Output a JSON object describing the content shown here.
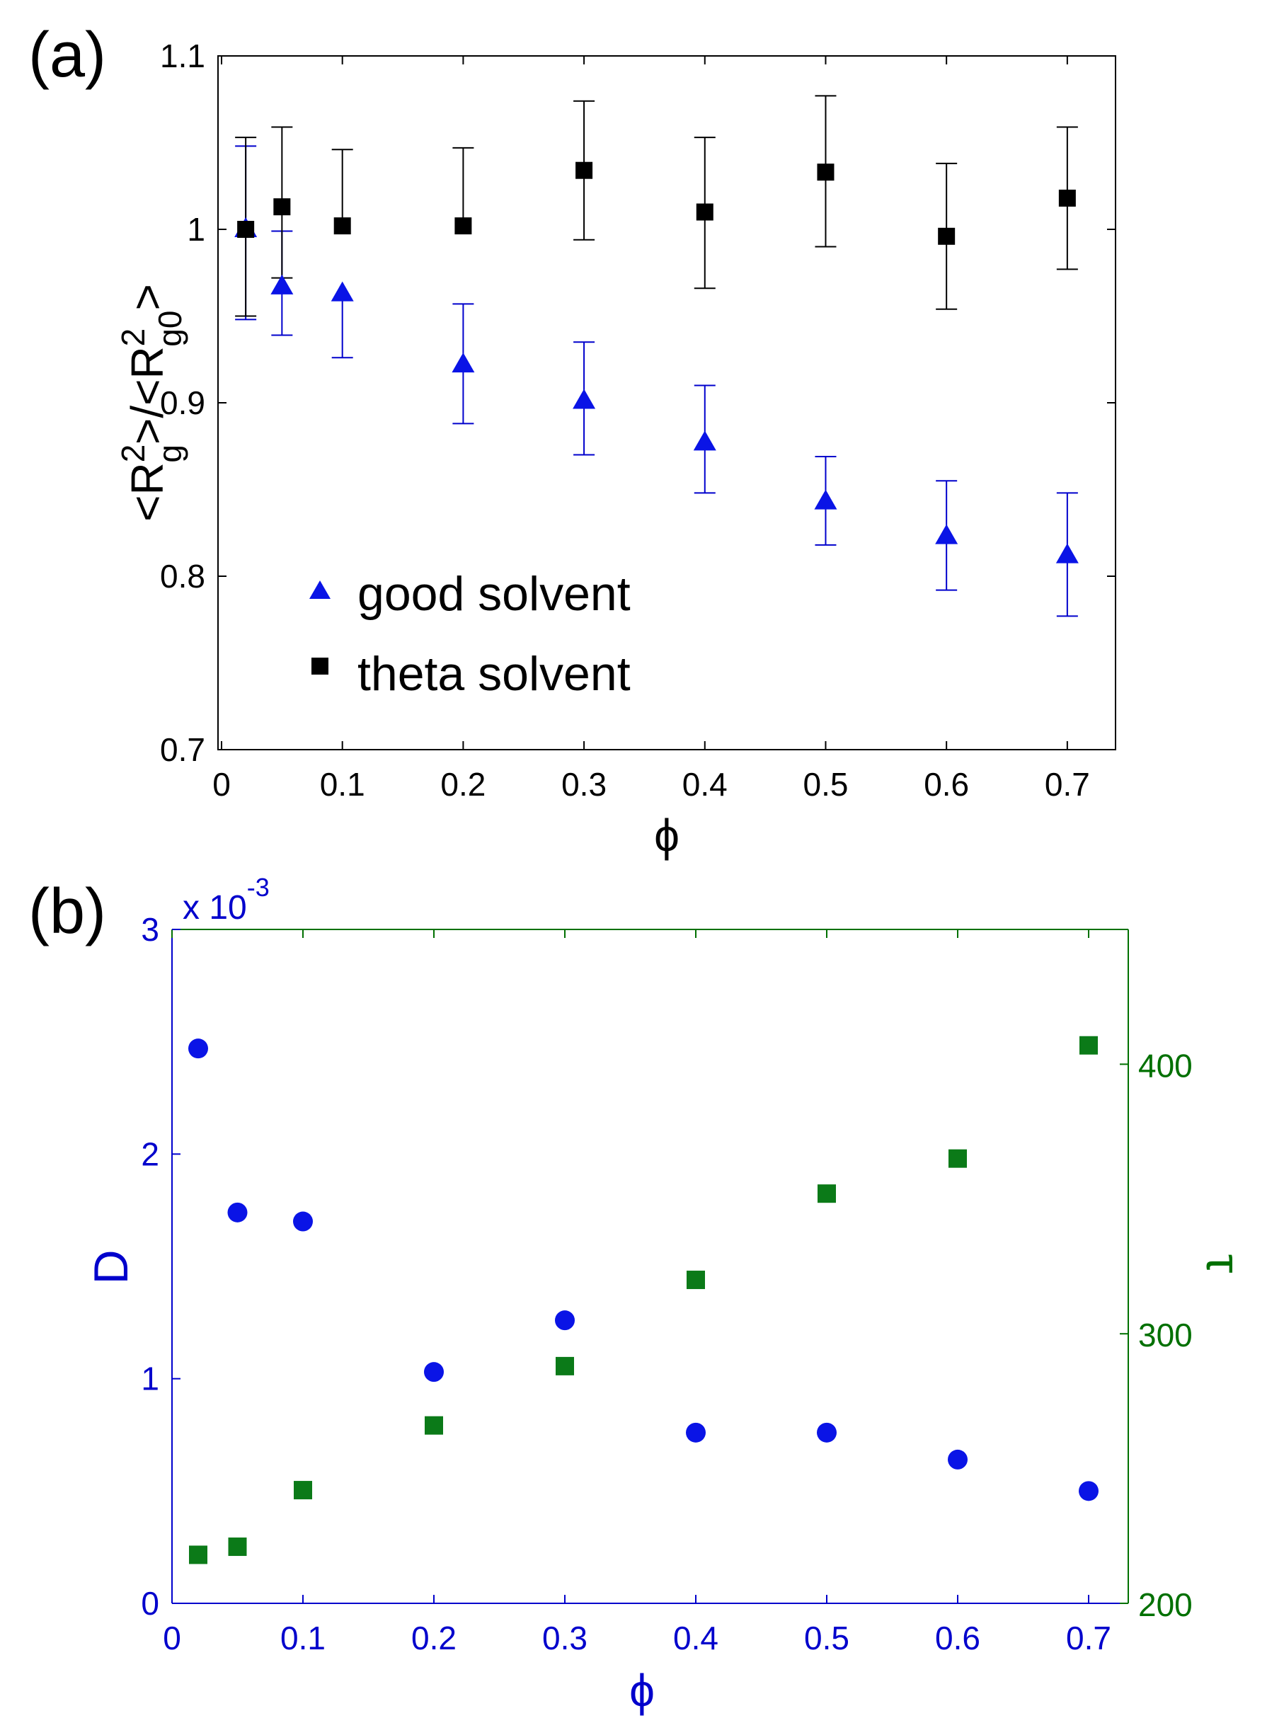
{
  "colors": {
    "black": "#000000",
    "blue": "#0000cc",
    "green": "#007000",
    "marker_blue": "#0a14e6",
    "marker_green": "#0b7a18"
  },
  "chart_data": [
    {
      "panel_label": "(a)",
      "type": "scatter",
      "title": "",
      "xlabel": "ϕ",
      "ylabel": {
        "pre": "<R",
        "sup1": "2",
        "sub1": "g",
        "mid": ">/<R",
        "sup2": "2",
        "sub2": "g0",
        "post": ">"
      },
      "xlim": [
        0,
        0.72
      ],
      "ylim": [
        0.7,
        1.1
      ],
      "xticks": [
        0,
        0.1,
        0.2,
        0.3,
        0.4,
        0.5,
        0.6,
        0.7
      ],
      "xtick_labels": [
        "0",
        "0.1",
        "0.2",
        "0.3",
        "0.4",
        "0.5",
        "0.6",
        "0.7"
      ],
      "yticks": [
        0.7,
        0.8,
        0.9,
        1.0,
        1.1
      ],
      "ytick_labels": [
        "0.7",
        "0.8",
        "0.9",
        "1",
        "1.1"
      ],
      "grid": false,
      "legend_position": "bottom-left",
      "series": [
        {
          "name": "good solvent",
          "marker": "triangle",
          "x": [
            0.02,
            0.05,
            0.1,
            0.2,
            0.3,
            0.4,
            0.5,
            0.6,
            0.7
          ],
          "y": [
            1.0,
            0.967,
            0.963,
            0.922,
            0.901,
            0.877,
            0.843,
            0.823,
            0.812
          ],
          "err_low": [
            0.052,
            0.028,
            0.037,
            0.034,
            0.031,
            0.029,
            0.025,
            0.031,
            0.035
          ],
          "err_high": [
            0.048,
            0.032,
            0.0,
            0.035,
            0.034,
            0.033,
            0.026,
            0.032,
            0.036
          ]
        },
        {
          "name": "theta solvent",
          "marker": "square",
          "x": [
            0.02,
            0.05,
            0.1,
            0.2,
            0.3,
            0.4,
            0.5,
            0.6,
            0.7
          ],
          "y": [
            1.0,
            1.013,
            1.002,
            1.002,
            1.034,
            1.01,
            1.033,
            0.996,
            1.018
          ],
          "err_low": [
            0.05,
            0.041,
            0.0,
            0.0,
            0.04,
            0.044,
            0.043,
            0.042,
            0.041
          ],
          "err_high": [
            0.053,
            0.046,
            0.044,
            0.045,
            0.04,
            0.043,
            0.044,
            0.042,
            0.041
          ]
        }
      ]
    },
    {
      "panel_label": "(b)",
      "type": "scatter",
      "title": "",
      "xlabel": "ϕ",
      "ylabel_left": "D",
      "ylabel_right": "τ",
      "left_axis_multiplier": "x 10",
      "left_axis_exponent": "-3",
      "xlim": [
        0,
        0.72
      ],
      "ylim_left": [
        0,
        3
      ],
      "ylim_right": [
        200,
        450
      ],
      "xticks": [
        0,
        0.1,
        0.2,
        0.3,
        0.4,
        0.5,
        0.6,
        0.7
      ],
      "xtick_labels": [
        "0",
        "0.1",
        "0.2",
        "0.3",
        "0.4",
        "0.5",
        "0.6",
        "0.7"
      ],
      "yticks_left": [
        0,
        1,
        2,
        3
      ],
      "ytick_labels_left": [
        "0",
        "1",
        "2",
        "3"
      ],
      "yticks_right": [
        200,
        300,
        400
      ],
      "ytick_labels_right": [
        "200",
        "300",
        "400"
      ],
      "grid": false,
      "series": [
        {
          "name": "D",
          "axis": "left",
          "marker": "circle",
          "x": [
            0.02,
            0.05,
            0.1,
            0.2,
            0.3,
            0.4,
            0.5,
            0.6,
            0.7
          ],
          "y": [
            2.47,
            1.74,
            1.7,
            1.03,
            1.26,
            0.76,
            0.76,
            0.64,
            0.5
          ]
        },
        {
          "name": "τ",
          "axis": "right",
          "marker": "square",
          "x": [
            0.02,
            0.05,
            0.1,
            0.2,
            0.3,
            0.4,
            0.5,
            0.6,
            0.7
          ],
          "y": [
            218,
            221,
            242,
            266,
            288,
            320,
            352,
            365,
            407
          ]
        }
      ]
    }
  ]
}
